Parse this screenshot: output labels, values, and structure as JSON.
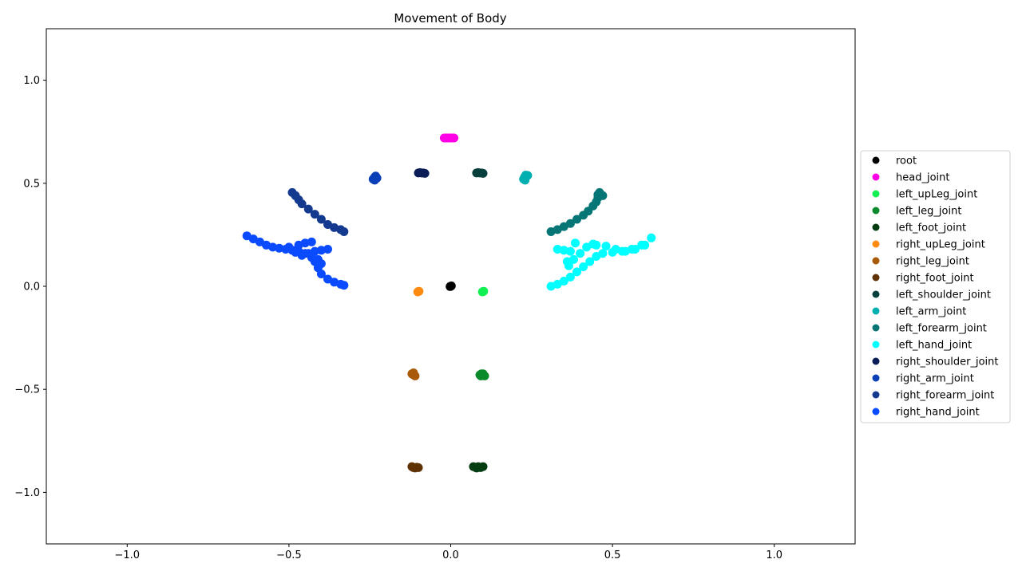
{
  "chart_data": {
    "type": "scatter",
    "title": "Movement of Body",
    "xlabel": "",
    "ylabel": "",
    "xlim": [
      -1.25,
      1.25
    ],
    "ylim": [
      -1.25,
      1.25
    ],
    "xticks": [
      -1.0,
      -0.5,
      0.0,
      0.5,
      1.0
    ],
    "xtick_labels": [
      "−1.0",
      "−0.5",
      "0.0",
      "0.5",
      "1.0"
    ],
    "yticks": [
      1.0,
      0.5,
      0.0,
      -0.5,
      -1.0
    ],
    "ytick_labels": [
      "1.0",
      "0.5",
      "0.0",
      "−0.5",
      "−1.0"
    ],
    "grid": false,
    "legend_position": "center-right outside",
    "series": [
      {
        "name": "root",
        "color": "#000000",
        "points": [
          [
            0.0,
            0.0
          ],
          [
            0.002,
            0.002
          ],
          [
            -0.002,
            -0.001
          ]
        ]
      },
      {
        "name": "head_joint",
        "color": "#ff00e6",
        "points": [
          [
            -0.02,
            0.72
          ],
          [
            -0.015,
            0.72
          ],
          [
            -0.01,
            0.72
          ],
          [
            -0.005,
            0.72
          ],
          [
            0.0,
            0.72
          ],
          [
            0.005,
            0.72
          ],
          [
            0.01,
            0.72
          ]
        ]
      },
      {
        "name": "left_upLeg_joint",
        "color": "#10f050",
        "points": [
          [
            0.1,
            -0.025
          ],
          [
            0.098,
            -0.027
          ],
          [
            0.102,
            -0.024
          ]
        ]
      },
      {
        "name": "left_leg_joint",
        "color": "#0b8a2b",
        "points": [
          [
            0.09,
            -0.43
          ],
          [
            0.095,
            -0.425
          ],
          [
            0.1,
            -0.43
          ],
          [
            0.105,
            -0.435
          ],
          [
            0.1,
            -0.425
          ],
          [
            0.093,
            -0.435
          ]
        ]
      },
      {
        "name": "left_foot_joint",
        "color": "#053d13",
        "points": [
          [
            0.07,
            -0.875
          ],
          [
            0.078,
            -0.88
          ],
          [
            0.085,
            -0.875
          ],
          [
            0.092,
            -0.88
          ],
          [
            0.1,
            -0.875
          ],
          [
            0.08,
            -0.882
          ]
        ]
      },
      {
        "name": "right_upLeg_joint",
        "color": "#ff8a10",
        "points": [
          [
            -0.1,
            -0.025
          ],
          [
            -0.102,
            -0.027
          ],
          [
            -0.098,
            -0.024
          ]
        ]
      },
      {
        "name": "right_leg_joint",
        "color": "#a85a0a",
        "points": [
          [
            -0.12,
            -0.425
          ],
          [
            -0.115,
            -0.43
          ],
          [
            -0.11,
            -0.435
          ],
          [
            -0.115,
            -0.42
          ],
          [
            -0.112,
            -0.432
          ]
        ]
      },
      {
        "name": "right_foot_joint",
        "color": "#5e3204",
        "points": [
          [
            -0.12,
            -0.875
          ],
          [
            -0.115,
            -0.88
          ],
          [
            -0.11,
            -0.882
          ],
          [
            -0.105,
            -0.878
          ],
          [
            -0.1,
            -0.88
          ]
        ]
      },
      {
        "name": "left_shoulder_joint",
        "color": "#063f3c",
        "points": [
          [
            0.08,
            0.55
          ],
          [
            0.085,
            0.552
          ],
          [
            0.09,
            0.55
          ],
          [
            0.095,
            0.55
          ],
          [
            0.1,
            0.548
          ]
        ]
      },
      {
        "name": "left_arm_joint",
        "color": "#00b0b0",
        "points": [
          [
            0.225,
            0.52
          ],
          [
            0.228,
            0.53
          ],
          [
            0.232,
            0.54
          ],
          [
            0.238,
            0.538
          ],
          [
            0.23,
            0.515
          ]
        ]
      },
      {
        "name": "left_forearm_joint",
        "color": "#057575",
        "points": [
          [
            0.31,
            0.265
          ],
          [
            0.33,
            0.275
          ],
          [
            0.35,
            0.29
          ],
          [
            0.37,
            0.305
          ],
          [
            0.39,
            0.325
          ],
          [
            0.41,
            0.345
          ],
          [
            0.425,
            0.365
          ],
          [
            0.44,
            0.39
          ],
          [
            0.45,
            0.41
          ],
          [
            0.455,
            0.43
          ],
          [
            0.46,
            0.455
          ],
          [
            0.47,
            0.44
          ],
          [
            0.455,
            0.445
          ]
        ]
      },
      {
        "name": "left_hand_joint",
        "color": "#00ffff",
        "points": [
          [
            0.31,
            0.0
          ],
          [
            0.33,
            0.01
          ],
          [
            0.35,
            0.025
          ],
          [
            0.37,
            0.045
          ],
          [
            0.39,
            0.07
          ],
          [
            0.41,
            0.095
          ],
          [
            0.43,
            0.12
          ],
          [
            0.45,
            0.145
          ],
          [
            0.47,
            0.16
          ],
          [
            0.5,
            0.165
          ],
          [
            0.53,
            0.17
          ],
          [
            0.56,
            0.18
          ],
          [
            0.59,
            0.2
          ],
          [
            0.62,
            0.235
          ],
          [
            0.33,
            0.18
          ],
          [
            0.35,
            0.175
          ],
          [
            0.37,
            0.17
          ],
          [
            0.36,
            0.12
          ],
          [
            0.365,
            0.1
          ],
          [
            0.38,
            0.13
          ],
          [
            0.4,
            0.16
          ],
          [
            0.42,
            0.19
          ],
          [
            0.45,
            0.2
          ],
          [
            0.48,
            0.195
          ],
          [
            0.51,
            0.18
          ],
          [
            0.54,
            0.17
          ],
          [
            0.57,
            0.18
          ],
          [
            0.6,
            0.2
          ],
          [
            0.385,
            0.21
          ],
          [
            0.44,
            0.205
          ]
        ]
      },
      {
        "name": "right_shoulder_joint",
        "color": "#0a1d57",
        "points": [
          [
            -0.1,
            0.55
          ],
          [
            -0.095,
            0.552
          ],
          [
            -0.09,
            0.55
          ],
          [
            -0.085,
            0.55
          ],
          [
            -0.08,
            0.548
          ]
        ]
      },
      {
        "name": "right_arm_joint",
        "color": "#0a3fb8",
        "points": [
          [
            -0.24,
            0.52
          ],
          [
            -0.235,
            0.53
          ],
          [
            -0.232,
            0.535
          ],
          [
            -0.228,
            0.525
          ],
          [
            -0.235,
            0.515
          ]
        ]
      },
      {
        "name": "right_forearm_joint",
        "color": "#143a90",
        "points": [
          [
            -0.49,
            0.455
          ],
          [
            -0.48,
            0.44
          ],
          [
            -0.47,
            0.42
          ],
          [
            -0.46,
            0.4
          ],
          [
            -0.44,
            0.375
          ],
          [
            -0.42,
            0.35
          ],
          [
            -0.4,
            0.325
          ],
          [
            -0.38,
            0.3
          ],
          [
            -0.36,
            0.285
          ],
          [
            -0.34,
            0.275
          ],
          [
            -0.33,
            0.265
          ]
        ]
      },
      {
        "name": "right_hand_joint",
        "color": "#0a4bff",
        "points": [
          [
            -0.63,
            0.245
          ],
          [
            -0.61,
            0.23
          ],
          [
            -0.59,
            0.215
          ],
          [
            -0.57,
            0.2
          ],
          [
            -0.55,
            0.19
          ],
          [
            -0.53,
            0.185
          ],
          [
            -0.51,
            0.18
          ],
          [
            -0.49,
            0.175
          ],
          [
            -0.47,
            0.17
          ],
          [
            -0.45,
            0.16
          ],
          [
            -0.43,
            0.14
          ],
          [
            -0.42,
            0.12
          ],
          [
            -0.41,
            0.09
          ],
          [
            -0.4,
            0.06
          ],
          [
            -0.38,
            0.035
          ],
          [
            -0.36,
            0.02
          ],
          [
            -0.34,
            0.01
          ],
          [
            -0.33,
            0.005
          ],
          [
            -0.5,
            0.19
          ],
          [
            -0.47,
            0.2
          ],
          [
            -0.45,
            0.21
          ],
          [
            -0.43,
            0.215
          ],
          [
            -0.44,
            0.16
          ],
          [
            -0.42,
            0.17
          ],
          [
            -0.4,
            0.175
          ],
          [
            -0.38,
            0.18
          ],
          [
            -0.41,
            0.13
          ],
          [
            -0.4,
            0.11
          ],
          [
            -0.48,
            0.165
          ],
          [
            -0.46,
            0.15
          ]
        ]
      }
    ]
  }
}
